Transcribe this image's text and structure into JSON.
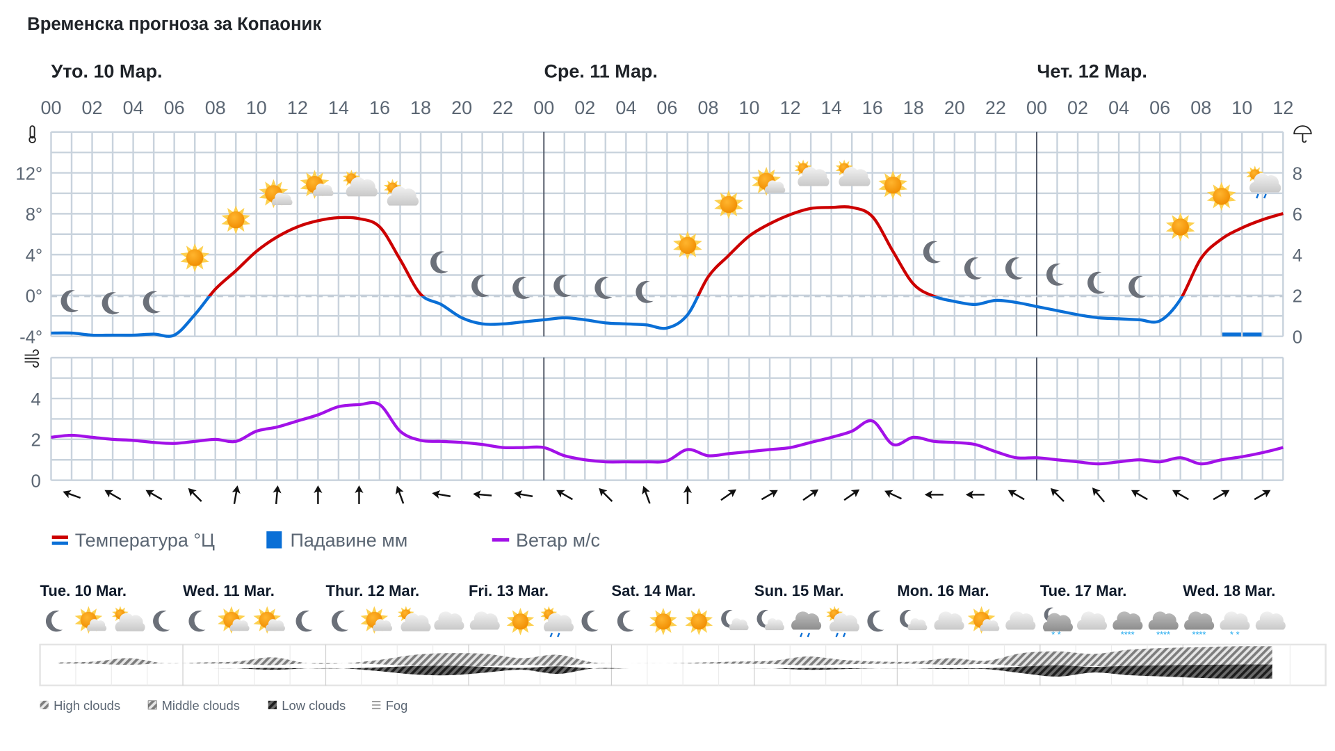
{
  "title": "Временска прогноза за Копаоник",
  "day_headers": [
    "Уто. 10 Мар.",
    "Сре. 11 Мар.",
    "Чет. 12 Мар."
  ],
  "hour_labels": [
    "00",
    "02",
    "04",
    "06",
    "08",
    "10",
    "12",
    "14",
    "16",
    "18",
    "20",
    "22",
    "00",
    "02",
    "04",
    "06",
    "08",
    "10",
    "12",
    "14",
    "16",
    "18",
    "20",
    "22",
    "00",
    "02",
    "04",
    "06",
    "08",
    "10",
    "12"
  ],
  "temp_axis_labels": [
    "12°",
    "8°",
    "4°",
    "0°",
    "-4°"
  ],
  "precip_axis_labels": [
    "8",
    "6",
    "4",
    "2",
    "0"
  ],
  "wind_axis_labels": [
    "4",
    "2",
    "0"
  ],
  "icons": {
    "temperature": "thermometer-icon",
    "precipitation": "umbrella-icon",
    "wind": "wind-icon"
  },
  "colors": {
    "temp_above_zero": "#cc0000",
    "temp_below_zero": "#0a6fd6",
    "precipitation": "#0a6fd6",
    "wind": "#a211e8"
  },
  "chart_data": [
    {
      "type": "line",
      "title": "",
      "x_unit": "hour from Уто. 10 Мар. 00",
      "x": [
        0,
        1,
        2,
        3,
        4,
        5,
        6,
        7,
        8,
        9,
        10,
        11,
        12,
        13,
        14,
        15,
        16,
        17,
        18,
        19,
        20,
        21,
        22,
        23,
        24,
        25,
        26,
        27,
        28,
        29,
        30,
        31,
        32,
        33,
        34,
        35,
        36,
        37,
        38,
        39,
        40,
        41,
        42,
        43,
        44,
        45,
        46,
        47,
        48,
        49,
        50,
        51,
        52,
        53,
        54,
        55,
        56,
        57,
        58,
        59,
        60
      ],
      "series": [
        {
          "name": "Температура °Ц",
          "axis": "left",
          "values": [
            -3.6,
            -3.6,
            -3.8,
            -3.8,
            -3.8,
            -3.7,
            -3.8,
            -1.8,
            0.7,
            2.5,
            4.4,
            5.8,
            6.8,
            7.4,
            7.7,
            7.6,
            6.8,
            3.6,
            0.2,
            -0.8,
            -2.1,
            -2.7,
            -2.7,
            -2.5,
            -2.3,
            -2.1,
            -2.3,
            -2.6,
            -2.7,
            -2.8,
            -3.1,
            -1.8,
            1.9,
            4.0,
            5.9,
            7.1,
            8.0,
            8.6,
            8.7,
            8.7,
            7.8,
            4.4,
            1.2,
            0.0,
            -0.5,
            -0.8,
            -0.4,
            -0.6,
            -1.0,
            -1.4,
            -1.8,
            -2.1,
            -2.2,
            -2.3,
            -2.4,
            -0.3,
            3.7,
            5.6,
            6.7,
            7.5,
            8.1
          ]
        },
        {
          "name": "Падавине мм",
          "axis": "right",
          "type": "bar",
          "values": [
            0,
            0,
            0,
            0,
            0,
            0,
            0,
            0,
            0,
            0,
            0,
            0,
            0,
            0,
            0,
            0,
            0,
            0,
            0,
            0,
            0,
            0,
            0,
            0,
            0,
            0,
            0,
            0,
            0,
            0,
            0,
            0,
            0,
            0,
            0,
            0,
            0,
            0,
            0,
            0,
            0,
            0,
            0,
            0,
            0,
            0,
            0,
            0,
            0,
            0,
            0,
            0,
            0,
            0,
            0,
            0,
            0,
            0,
            0.1,
            0.1,
            0
          ]
        }
      ],
      "ylim_left": [
        -4,
        16
      ],
      "ylim_right": [
        0,
        8
      ],
      "grid": true
    },
    {
      "type": "line",
      "title": "",
      "x": [
        0,
        1,
        2,
        3,
        4,
        5,
        6,
        7,
        8,
        9,
        10,
        11,
        12,
        13,
        14,
        15,
        16,
        17,
        18,
        19,
        20,
        21,
        22,
        23,
        24,
        25,
        26,
        27,
        28,
        29,
        30,
        31,
        32,
        33,
        34,
        35,
        36,
        37,
        38,
        39,
        40,
        41,
        42,
        43,
        44,
        45,
        46,
        47,
        48,
        49,
        50,
        51,
        52,
        53,
        54,
        55,
        56,
        57,
        58,
        59,
        60
      ],
      "series": [
        {
          "name": "Ветар м/с",
          "values": [
            2.1,
            2.2,
            2.1,
            2.0,
            1.95,
            1.85,
            1.8,
            1.9,
            2.0,
            1.9,
            2.4,
            2.6,
            2.9,
            3.2,
            3.6,
            3.7,
            3.7,
            2.4,
            1.95,
            1.9,
            1.85,
            1.75,
            1.6,
            1.6,
            1.6,
            1.2,
            1.0,
            0.9,
            0.9,
            0.9,
            0.95,
            1.5,
            1.2,
            1.3,
            1.4,
            1.5,
            1.6,
            1.85,
            2.1,
            2.4,
            2.9,
            1.75,
            2.1,
            1.9,
            1.85,
            1.75,
            1.4,
            1.1,
            1.1,
            1.0,
            0.9,
            0.8,
            0.9,
            1.0,
            0.9,
            1.1,
            0.8,
            1.0,
            1.15,
            1.35,
            1.6
          ]
        }
      ],
      "ylim": [
        0,
        6
      ],
      "grid": true,
      "wind_direction_hours": [
        1,
        3,
        5,
        7,
        9,
        11,
        13,
        15,
        17,
        19,
        21,
        23,
        25,
        27,
        29,
        31,
        33,
        35,
        37,
        39,
        41,
        43,
        45,
        47,
        49,
        51,
        53,
        55,
        57,
        59
      ],
      "wind_arrow_bearing_deg": [
        290,
        300,
        300,
        315,
        10,
        5,
        0,
        0,
        340,
        280,
        275,
        280,
        300,
        315,
        340,
        0,
        55,
        60,
        55,
        55,
        295,
        270,
        270,
        300,
        315,
        320,
        300,
        300,
        60,
        60
      ]
    }
  ],
  "hourly_icons": [
    "moon",
    "moon",
    "moon",
    "sun",
    "sun",
    "sun-cloud",
    "sun-cloud",
    "sun-behind-cloud",
    "sun-behind-cloud",
    "moon",
    "moon",
    "moon",
    "moon",
    "moon",
    "moon",
    "sun",
    "sun",
    "sun-cloud",
    "sun-behind-cloud",
    "sun-behind-cloud",
    "sun",
    "moon",
    "moon",
    "moon",
    "moon",
    "moon",
    "moon",
    "sun",
    "sun",
    "sun-behind-cloud-rain"
  ],
  "legend": [
    {
      "label": "Температура °Ц",
      "icon": "temperature-swatch"
    },
    {
      "label": "Падавине мм",
      "icon": "precipitation-swatch"
    },
    {
      "label": "Ветар м/с",
      "icon": "wind-swatch"
    }
  ],
  "forecast": {
    "days": [
      "Tue. 10 Mar.",
      "Wed. 11 Mar.",
      "Thur. 12 Mar.",
      "Fri. 13 Mar.",
      "Sat. 14 Mar.",
      "Sun. 15 Mar.",
      "Mon. 16 Mar.",
      "Tue. 17 Mar.",
      "Wed. 18 Mar."
    ],
    "icons": [
      "moon",
      "sun-cloud",
      "sun-behind-cloud",
      "moon",
      "moon",
      "sun-cloud",
      "sun-cloud",
      "moon",
      "moon",
      "sun-cloud",
      "sun-behind-cloud",
      "cloud",
      "cloud",
      "sun",
      "sun-behind-cloud-rain",
      "moon",
      "moon",
      "sun",
      "sun",
      "moon-cloud",
      "moon-cloud",
      "cloud-rain",
      "sun-behind-cloud-rain",
      "moon",
      "moon-cloud",
      "cloud",
      "sun-cloud",
      "cloud",
      "moon-cloud-snow",
      "cloud",
      "cloud-snow-heavy",
      "cloud-snow-heavy",
      "cloud-snow-heavy",
      "cloud-snow-light",
      "cloud"
    ],
    "cloud_cover_high_mid": [
      0.05,
      0.1,
      0.3,
      0,
      0.05,
      0.1,
      0.35,
      0,
      0,
      0.2,
      0.5,
      0.6,
      0.55,
      0.3,
      0.5,
      0.05,
      0,
      0,
      0.05,
      0.1,
      0.15,
      0.4,
      0.2,
      0.1,
      0.1,
      0.3,
      0.15,
      0.6,
      0.7,
      0.55,
      0.8,
      0.9,
      0.95,
      1,
      1
    ],
    "cloud_cover_low": [
      0,
      0,
      0,
      0,
      0,
      0,
      0.1,
      0,
      0,
      0.2,
      0.45,
      0.5,
      0.3,
      0.1,
      0.4,
      0,
      0,
      0,
      0,
      0,
      0,
      0.1,
      0.05,
      0,
      0,
      0.05,
      0.05,
      0.35,
      0.6,
      0.3,
      0.5,
      0.6,
      0.7,
      0.75,
      0.75
    ],
    "cloud_legend": [
      "High clouds",
      "Middle clouds",
      "Low clouds",
      "Fog"
    ]
  }
}
